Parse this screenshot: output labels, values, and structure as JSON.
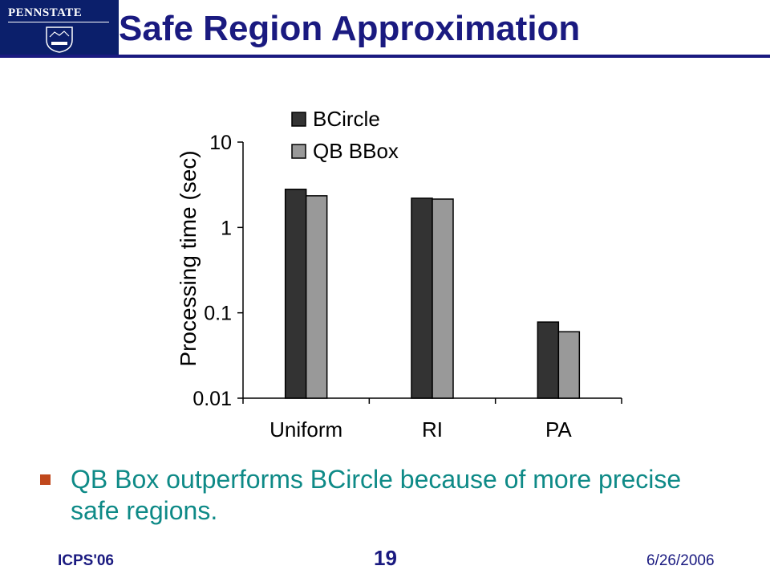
{
  "slide": {
    "title": "Safe Region Approximation",
    "logo_text": "PENNSTATE",
    "bullet": "QB Box outperforms BCircle because of more precise safe regions.",
    "footer_left": "ICPS'06",
    "page_number": "19",
    "date": "6/26/2006"
  },
  "colors": {
    "title": "#1a1a80",
    "bullet_text": "#0e8a87",
    "bullet_mark": "#c0481c",
    "logo_bg": "#0b1f6b"
  },
  "chart_data": {
    "type": "bar",
    "ylabel": "Processing time (sec)",
    "xlabel": "",
    "yscale": "log",
    "ylim": [
      0.01,
      10
    ],
    "yticks": [
      0.01,
      0.1,
      1,
      10
    ],
    "ytick_labels": [
      "0.01",
      "0.1",
      "1",
      "10"
    ],
    "categories": [
      "Uniform",
      "RI",
      "PA"
    ],
    "series": [
      {
        "name": "BCircle",
        "color": "#333333",
        "values": [
          2.8,
          2.2,
          0.078
        ]
      },
      {
        "name": "QB BBox",
        "color": "#999999",
        "values": [
          2.35,
          2.15,
          0.06
        ]
      }
    ],
    "legend_position": "top-right",
    "grid": false
  }
}
